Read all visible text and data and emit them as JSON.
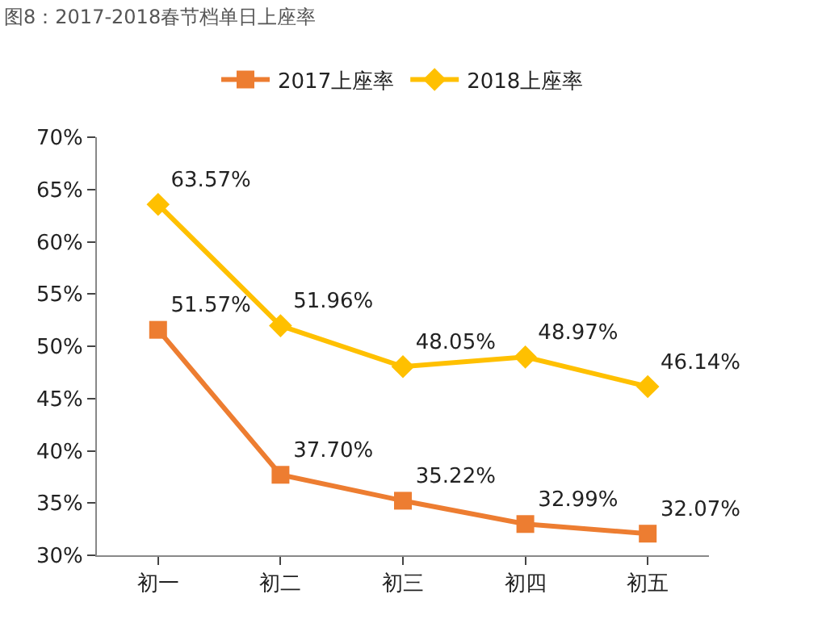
{
  "chart_data": {
    "type": "line",
    "title": "图8：2017-2018春节档单日上座率",
    "categories": [
      "初一",
      "初二",
      "初三",
      "初四",
      "初五"
    ],
    "series": [
      {
        "name": "2017上座率",
        "color": "#ed7d31",
        "marker": "square",
        "values": [
          51.57,
          37.7,
          35.22,
          32.99,
          32.07
        ],
        "value_labels": [
          "51.57%",
          "37.70%",
          "35.22%",
          "32.99%",
          "32.07%"
        ]
      },
      {
        "name": "2018上座率",
        "color": "#ffc000",
        "marker": "diamond",
        "values": [
          63.57,
          51.96,
          48.05,
          48.97,
          46.14
        ],
        "value_labels": [
          "63.57%",
          "51.96%",
          "48.05%",
          "48.97%",
          "46.14%"
        ]
      }
    ],
    "ylim": [
      30,
      70
    ],
    "yticks": [
      {
        "value": 30,
        "label": "30%"
      },
      {
        "value": 35,
        "label": "35%"
      },
      {
        "value": 40,
        "label": "40%"
      },
      {
        "value": 45,
        "label": "45%"
      },
      {
        "value": 50,
        "label": "50%"
      },
      {
        "value": 55,
        "label": "55%"
      },
      {
        "value": 60,
        "label": "60%"
      },
      {
        "value": 65,
        "label": "65%"
      },
      {
        "value": 70,
        "label": "70%"
      }
    ],
    "legend": "top",
    "line_style": "solid"
  }
}
